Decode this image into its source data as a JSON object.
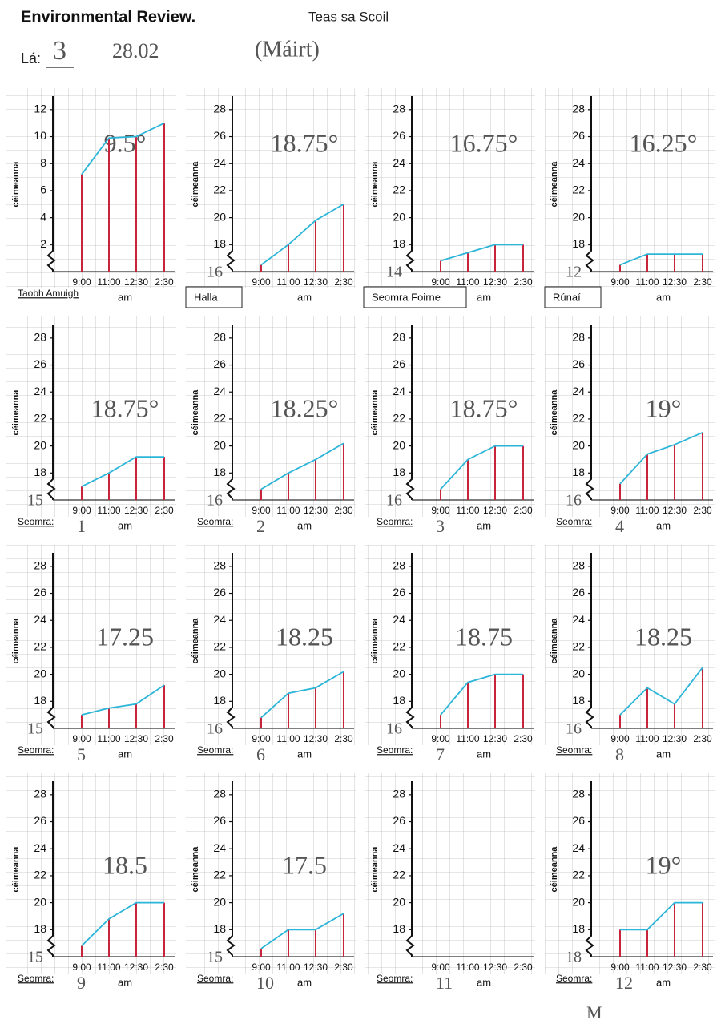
{
  "header": {
    "title": "Environmental Review.",
    "subtitle": "Teas sa Scoil",
    "day_label": "Lá:",
    "day_value": "3",
    "date": "28.02",
    "weekday": "(Máirt)"
  },
  "footer_mark": "M",
  "chart_data": [
    {
      "type": "line",
      "ylabel": "céimeanna",
      "xlabel": "am",
      "categories": [
        "9:00",
        "11:00",
        "12:30",
        "2:30"
      ],
      "values": [
        7.2,
        9.9,
        10,
        11
      ],
      "ylim": [
        0,
        13
      ],
      "yticks": [
        2,
        4,
        6,
        8,
        10,
        12
      ],
      "color": "#2bb5d8",
      "stem_color": "#c8243c",
      "annotation": "9.5°",
      "room_label": "Taobh Amuigh",
      "label_box": false
    },
    {
      "type": "line",
      "ylabel": "céimeanna",
      "xlabel": "am",
      "categories": [
        "9:00",
        "11:00",
        "12:30",
        "2:30"
      ],
      "values": [
        16.5,
        18,
        19.8,
        21
      ],
      "ylim": [
        16,
        29
      ],
      "yticks": [
        18,
        20,
        22,
        24,
        26,
        28
      ],
      "color": "#2bb5d8",
      "stem_color": "#c8243c",
      "annotation": "18.75°",
      "axis_note": "16",
      "room_label": "Halla",
      "label_box": true
    },
    {
      "type": "line",
      "ylabel": "céimeanna",
      "xlabel": "am",
      "categories": [
        "9:00",
        "11:00",
        "12:30",
        "2:30"
      ],
      "values": [
        16.8,
        17.4,
        18,
        18
      ],
      "ylim": [
        16,
        29
      ],
      "yticks": [
        18,
        20,
        22,
        24,
        26,
        28
      ],
      "color": "#2bb5d8",
      "stem_color": "#c8243c",
      "annotation": "16.75°",
      "axis_note": "14",
      "room_label": "Seomra Foirne",
      "label_box": true
    },
    {
      "type": "line",
      "ylabel": "céimeanna",
      "xlabel": "am",
      "categories": [
        "9:00",
        "11:00",
        "12:30",
        "2:30"
      ],
      "values": [
        16.5,
        17.3,
        17.3,
        17.3
      ],
      "ylim": [
        16,
        29
      ],
      "yticks": [
        18,
        20,
        22,
        24,
        26,
        28
      ],
      "color": "#2bb5d8",
      "stem_color": "#c8243c",
      "annotation": "16.25°",
      "axis_note": "12",
      "room_label": "Rúnaí",
      "label_box": true
    },
    {
      "type": "line",
      "ylabel": "céimeanna",
      "xlabel": "am",
      "categories": [
        "9:00",
        "11:00",
        "12:30",
        "2:30"
      ],
      "values": [
        17,
        18,
        19.2,
        19.2
      ],
      "ylim": [
        16,
        29
      ],
      "yticks": [
        18,
        20,
        22,
        24,
        26,
        28
      ],
      "color": "#2bb5d8",
      "stem_color": "#c8243c",
      "annotation": "18.75°",
      "axis_note": "15",
      "room_label": "Seomra:",
      "room_number": "1",
      "label_box": false
    },
    {
      "type": "line",
      "ylabel": "céimeanna",
      "xlabel": "am",
      "categories": [
        "9:00",
        "11:00",
        "12:30",
        "2:30"
      ],
      "values": [
        16.8,
        18,
        19,
        20.2
      ],
      "ylim": [
        16,
        29
      ],
      "yticks": [
        18,
        20,
        22,
        24,
        26,
        28
      ],
      "color": "#2bb5d8",
      "stem_color": "#c8243c",
      "annotation": "18.25°",
      "axis_note": "16",
      "room_label": "Seomra:",
      "room_number": "2",
      "label_box": false
    },
    {
      "type": "line",
      "ylabel": "céimeanna",
      "xlabel": "am",
      "categories": [
        "9:00",
        "11:00",
        "12:30",
        "2:30"
      ],
      "values": [
        16.8,
        19,
        20,
        20
      ],
      "ylim": [
        16,
        29
      ],
      "yticks": [
        18,
        20,
        22,
        24,
        26,
        28
      ],
      "color": "#2bb5d8",
      "stem_color": "#c8243c",
      "annotation": "18.75°",
      "axis_note": "16",
      "room_label": "Seomra:",
      "room_number": "3",
      "label_box": false
    },
    {
      "type": "line",
      "ylabel": "céimeanna",
      "xlabel": "am",
      "categories": [
        "9:00",
        "11:00",
        "12:30",
        "2:30"
      ],
      "values": [
        17.2,
        19.4,
        20.1,
        21
      ],
      "ylim": [
        16,
        29
      ],
      "yticks": [
        18,
        20,
        22,
        24,
        26,
        28
      ],
      "color": "#2bb5d8",
      "stem_color": "#c8243c",
      "annotation": "19°",
      "axis_note": "16",
      "room_label": "Seomra:",
      "room_number": "4",
      "label_box": false
    },
    {
      "type": "line",
      "ylabel": "céimeanna",
      "xlabel": "am",
      "categories": [
        "9:00",
        "11:00",
        "12:30",
        "2:30"
      ],
      "values": [
        17,
        17.5,
        17.8,
        19.2
      ],
      "ylim": [
        16,
        29
      ],
      "yticks": [
        18,
        20,
        22,
        24,
        26,
        28
      ],
      "color": "#2bb5d8",
      "stem_color": "#c8243c",
      "annotation": "17.25",
      "axis_note": "15",
      "room_label": "Seomra:",
      "room_number": "5",
      "label_box": false
    },
    {
      "type": "line",
      "ylabel": "céimeanna",
      "xlabel": "am",
      "categories": [
        "9:00",
        "11:00",
        "12:30",
        "2:30"
      ],
      "values": [
        16.8,
        18.6,
        19,
        20.2
      ],
      "ylim": [
        16,
        29
      ],
      "yticks": [
        18,
        20,
        22,
        24,
        26,
        28
      ],
      "color": "#2bb5d8",
      "stem_color": "#c8243c",
      "annotation": "18.25",
      "axis_note": "16",
      "room_label": "Seomra:",
      "room_number": "6",
      "label_box": false
    },
    {
      "type": "line",
      "ylabel": "céimeanna",
      "xlabel": "am",
      "categories": [
        "9:00",
        "11:00",
        "12:30",
        "2:30"
      ],
      "values": [
        17,
        19.4,
        20,
        20
      ],
      "ylim": [
        16,
        29
      ],
      "yticks": [
        18,
        20,
        22,
        24,
        26,
        28
      ],
      "color": "#2bb5d8",
      "stem_color": "#c8243c",
      "annotation": "18.75",
      "axis_note": "16",
      "room_label": "Seomra:",
      "room_number": "7",
      "label_box": false
    },
    {
      "type": "line",
      "ylabel": "céimeanna",
      "xlabel": "am",
      "categories": [
        "9:00",
        "11:00",
        "12:30",
        "2:30"
      ],
      "values": [
        17,
        19,
        17.8,
        20.5
      ],
      "ylim": [
        16,
        29
      ],
      "yticks": [
        18,
        20,
        22,
        24,
        26,
        28
      ],
      "color": "#2bb5d8",
      "stem_color": "#c8243c",
      "annotation": "18.25",
      "axis_note": "16",
      "room_label": "Seomra:",
      "room_number": "8",
      "label_box": false
    },
    {
      "type": "line",
      "ylabel": "céimeanna",
      "xlabel": "am",
      "categories": [
        "9:00",
        "11:00",
        "12:30",
        "2:30"
      ],
      "values": [
        16.8,
        18.8,
        20,
        20
      ],
      "ylim": [
        16,
        29
      ],
      "yticks": [
        18,
        20,
        22,
        24,
        26,
        28
      ],
      "color": "#2bb5d8",
      "stem_color": "#c8243c",
      "annotation": "18.5",
      "axis_note": "15",
      "room_label": "Seomra:",
      "room_number": "9",
      "label_box": false
    },
    {
      "type": "line",
      "ylabel": "céimeanna",
      "xlabel": "am",
      "categories": [
        "9:00",
        "11:00",
        "12:30",
        "2:30"
      ],
      "values": [
        16.6,
        18,
        18,
        19.2
      ],
      "ylim": [
        16,
        29
      ],
      "yticks": [
        18,
        20,
        22,
        24,
        26,
        28
      ],
      "color": "#2bb5d8",
      "stem_color": "#c8243c",
      "annotation": "17.5",
      "axis_note": "15",
      "room_label": "Seomra:",
      "room_number": "10",
      "label_box": false
    },
    {
      "type": "line",
      "ylabel": "céimeanna",
      "xlabel": "am",
      "categories": [
        "9:00",
        "11:00",
        "12:30",
        "2:30"
      ],
      "values": [
        null,
        null,
        null,
        null
      ],
      "ylim": [
        16,
        29
      ],
      "yticks": [
        18,
        20,
        22,
        24,
        26,
        28
      ],
      "color": "#2bb5d8",
      "stem_color": "#c8243c",
      "room_label": "Seomra:",
      "room_number": "11",
      "label_box": false
    },
    {
      "type": "line",
      "ylabel": "céimeanna",
      "xlabel": "am",
      "categories": [
        "9:00",
        "11:00",
        "12:30",
        "2:30"
      ],
      "values": [
        18,
        18,
        20,
        20
      ],
      "ylim": [
        16,
        29
      ],
      "yticks": [
        18,
        20,
        22,
        24,
        26,
        28
      ],
      "color": "#2bb5d8",
      "stem_color": "#c8243c",
      "annotation": "19°",
      "axis_note": "18",
      "room_label": "Seomra:",
      "room_number": "12",
      "label_box": false
    }
  ]
}
